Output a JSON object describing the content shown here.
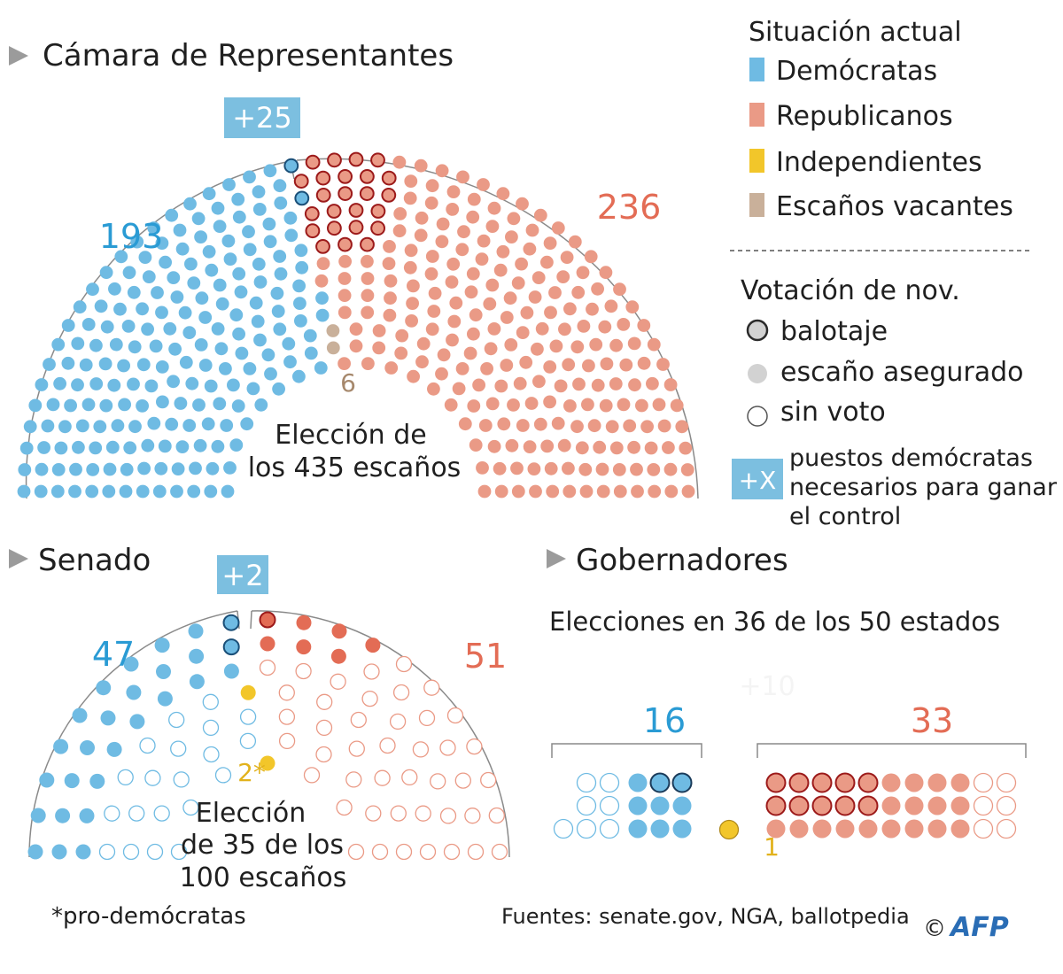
{
  "colors": {
    "dem": "#6fbbe3",
    "dem_dark": "#2a9bd4",
    "dem_light": "#9fd2ec",
    "rep": "#ea9a86",
    "rep_dark": "#e36c55",
    "rep_edge": "#9c1a1a",
    "ind": "#f2c62a",
    "vac": "#c9b09a",
    "gray": "#d2d2d2",
    "badge": "#7cbfe0"
  },
  "legend": {
    "title": "Situación actual",
    "items": [
      "Demócratas",
      "Republicanos",
      "Independientes",
      "Escaños vacantes"
    ],
    "vote_title": "Votación de nov.",
    "vote_items": [
      "balotaje",
      "escaño asegurado",
      "sin voto"
    ],
    "badge_symbol": "+X",
    "badge_lines": [
      "puestos demócratas",
      "necesarios para ganar",
      "el control"
    ]
  },
  "house": {
    "title": "Cámara de Representantes",
    "badge": "+25",
    "dem_label": "193",
    "rep_label": "236",
    "vac_label": "6",
    "center_lines": [
      "Elección de",
      "los 435 escaños"
    ]
  },
  "senate": {
    "title": "Senado",
    "badge": "+2",
    "dem_label": "47",
    "rep_label": "51",
    "ind_label": "2*",
    "center_lines": [
      "Elección",
      "de 35 de los",
      "100 escaños"
    ]
  },
  "governors": {
    "title": "Gobernadores",
    "subtitle": "Elecciones en 36 de los 50 estados",
    "badge": "+10",
    "dem_label": "16",
    "rep_label": "33",
    "ind_label": "1"
  },
  "footnote": "*pro-demócratas",
  "sources": "Fuentes: senate.gov, NGA, ballotpedia",
  "logo": "AFP",
  "copyright": "©",
  "chart_data": [
    {
      "type": "parliament",
      "title": "Cámara de Representantes",
      "total_seats": 435,
      "series": [
        {
          "name": "Demócratas",
          "values": [
            193
          ]
        },
        {
          "name": "Republicanos",
          "values": [
            236
          ]
        },
        {
          "name": "Escaños vacantes",
          "values": [
            6
          ]
        }
      ],
      "seats_needed_dem": 25,
      "note": "Elección de los 435 escaños"
    },
    {
      "type": "parliament",
      "title": "Senado",
      "total_seats": 100,
      "series": [
        {
          "name": "Demócratas",
          "values": [
            47
          ]
        },
        {
          "name": "Republicanos",
          "values": [
            51
          ]
        },
        {
          "name": "Independientes",
          "values": [
            2
          ]
        }
      ],
      "seats_needed_dem": 2,
      "note": "Elección de 35 de los 100 escaños"
    },
    {
      "type": "dot-grid",
      "title": "Gobernadores",
      "subtitle": "Elecciones en 36 de los 50 estados",
      "series": [
        {
          "name": "Demócratas",
          "values": [
            16
          ]
        },
        {
          "name": "Republicanos",
          "values": [
            33
          ]
        },
        {
          "name": "Independientes",
          "values": [
            1
          ]
        }
      ],
      "seats_needed_dem": 10
    }
  ]
}
